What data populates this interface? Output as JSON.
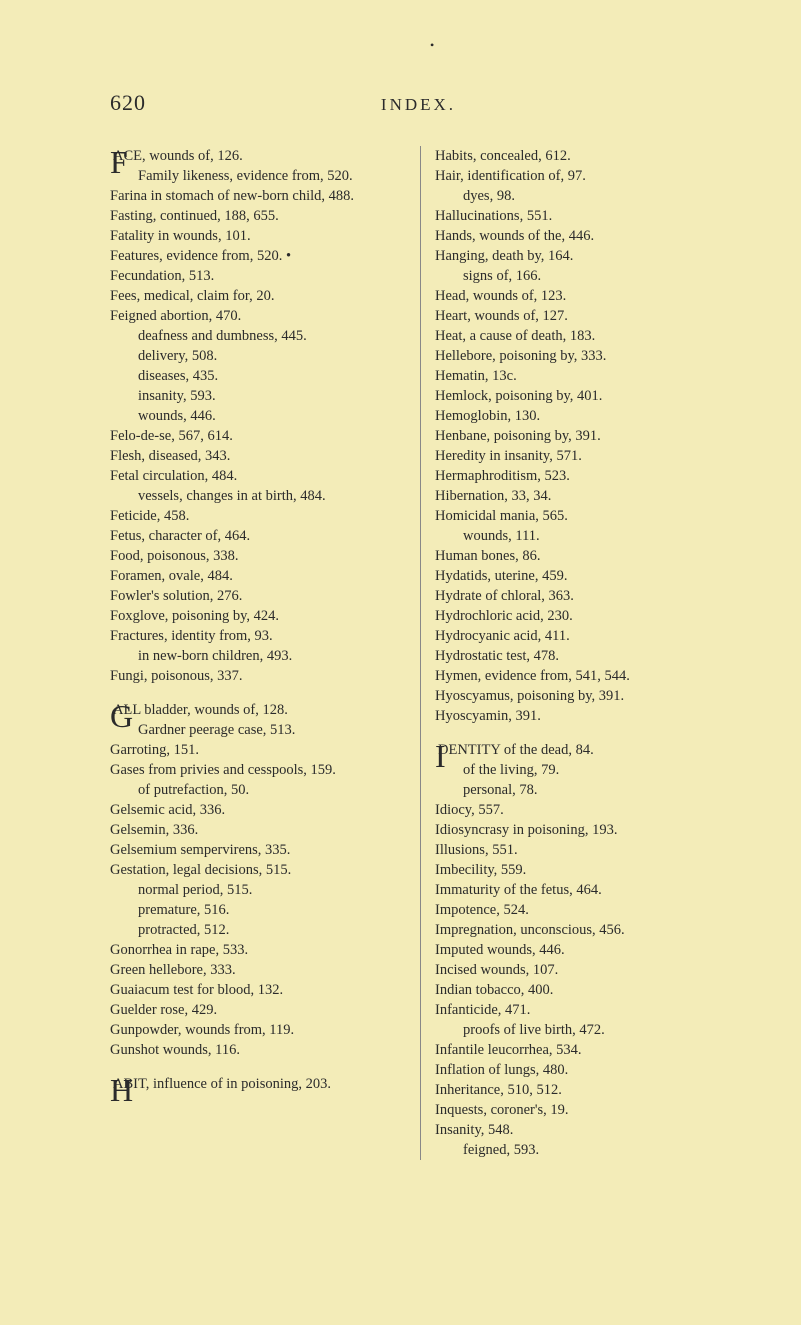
{
  "bullet": "•",
  "header": {
    "page_num": "620",
    "title": "INDEX."
  },
  "left": {
    "block_F": {
      "cap": "F",
      "first_line": "ACE, wounds of, 126.",
      "rest": [
        "Family likeness, evidence from, 520.",
        "Farina in stomach of new-born child, 488.",
        "Fasting, continued, 188, 655.",
        "Fatality in wounds, 101.",
        "Features, evidence from, 520.   •",
        "Fecundation, 513.",
        "Fees, medical, claim for, 20.",
        "Feigned abortion, 470."
      ],
      "sub1": [
        "deafness and dumbness, 445.",
        "delivery, 508.",
        "diseases, 435.",
        "insanity, 593.",
        "wounds, 446."
      ],
      "rest2": [
        "Felo-de-se, 567, 614.",
        "Flesh, diseased, 343.",
        "Fetal circulation, 484."
      ],
      "sub2": [
        "vessels, changes in at birth, 484."
      ],
      "rest3": [
        "Feticide, 458.",
        "Fetus, character of, 464.",
        "Food, poisonous, 338.",
        "Foramen, ovale, 484.",
        "Fowler's solution, 276.",
        "Foxglove, poisoning by, 424.",
        "Fractures, identity from, 93."
      ],
      "sub3": [
        "in new-born children, 493."
      ],
      "rest4": [
        "Fungi, poisonous, 337."
      ]
    },
    "block_G": {
      "cap": "G",
      "first_line": "ALL bladder, wounds of, 128.",
      "rest": [
        "Gardner peerage case, 513.",
        "Garroting, 151.",
        "Gases from privies and cesspools, 159."
      ],
      "sub1": [
        "of putrefaction, 50."
      ],
      "rest2": [
        "Gelsemic acid, 336.",
        "Gelsemin, 336.",
        "Gelsemium sempervirens, 335.",
        "Gestation, legal decisions, 515."
      ],
      "sub2": [
        "normal period, 515.",
        "premature, 516.",
        "protracted, 512."
      ],
      "rest3": [
        "Gonorrhea in rape, 533.",
        "Green hellebore, 333.",
        "Guaiacum test for blood, 132.",
        "Guelder rose, 429.",
        "Gunpowder, wounds from, 119.",
        "Gunshot wounds, 116."
      ]
    },
    "block_H": {
      "cap": "H",
      "first_line": "ABIT, influence of in poisoning, 203."
    }
  },
  "right": {
    "block_H2": {
      "entries": [
        "Habits, concealed, 612.",
        "Hair, identification of, 97."
      ],
      "sub1": [
        "dyes, 98."
      ],
      "entries2": [
        "Hallucinations, 551.",
        "Hands, wounds of the, 446.",
        "Hanging, death by, 164."
      ],
      "sub2": [
        "signs of, 166."
      ],
      "entries3": [
        "Head, wounds of, 123.",
        "Heart, wounds of, 127.",
        "Heat, a cause of death, 183.",
        "Hellebore, poisoning by, 333.",
        "Hematin, 13c.",
        "Hemlock, poisoning by, 401.",
        "Hemoglobin, 130.",
        "Henbane, poisoning by, 391.",
        "Heredity in insanity, 571.",
        "Hermaphroditism, 523.",
        "Hibernation, 33, 34.",
        "Homicidal mania, 565."
      ],
      "sub3": [
        "wounds, 111."
      ],
      "entries4": [
        "Human bones, 86.",
        "Hydatids, uterine, 459.",
        "Hydrate of chloral, 363.",
        "Hydrochloric acid, 230.",
        "Hydrocyanic acid, 411.",
        "Hydrostatic test, 478.",
        "Hymen, evidence from, 541, 544.",
        "Hyoscyamus, poisoning by, 391.",
        "Hyoscyamin, 391."
      ]
    },
    "block_I": {
      "cap": "I",
      "first_line": "DENTITY of the dead, 84.",
      "rest": [
        "of the living, 79.",
        "personal, 78."
      ],
      "entries": [
        "Idiocy, 557.",
        "Idiosyncrasy in poisoning, 193.",
        "Illusions, 551.",
        "Imbecility, 559.",
        "Immaturity of the fetus, 464.",
        "Impotence, 524.",
        "Impregnation, unconscious, 456.",
        "Imputed wounds, 446.",
        "Incised wounds, 107.",
        "Indian tobacco, 400.",
        "Infanticide, 471."
      ],
      "sub1": [
        "proofs of live birth, 472."
      ],
      "entries2": [
        "Infantile leucorrhea, 534.",
        "Inflation of lungs, 480.",
        "Inheritance, 510, 512.",
        "Inquests, coroner's, 19.",
        "Insanity, 548."
      ],
      "sub2": [
        "feigned, 593."
      ]
    }
  }
}
